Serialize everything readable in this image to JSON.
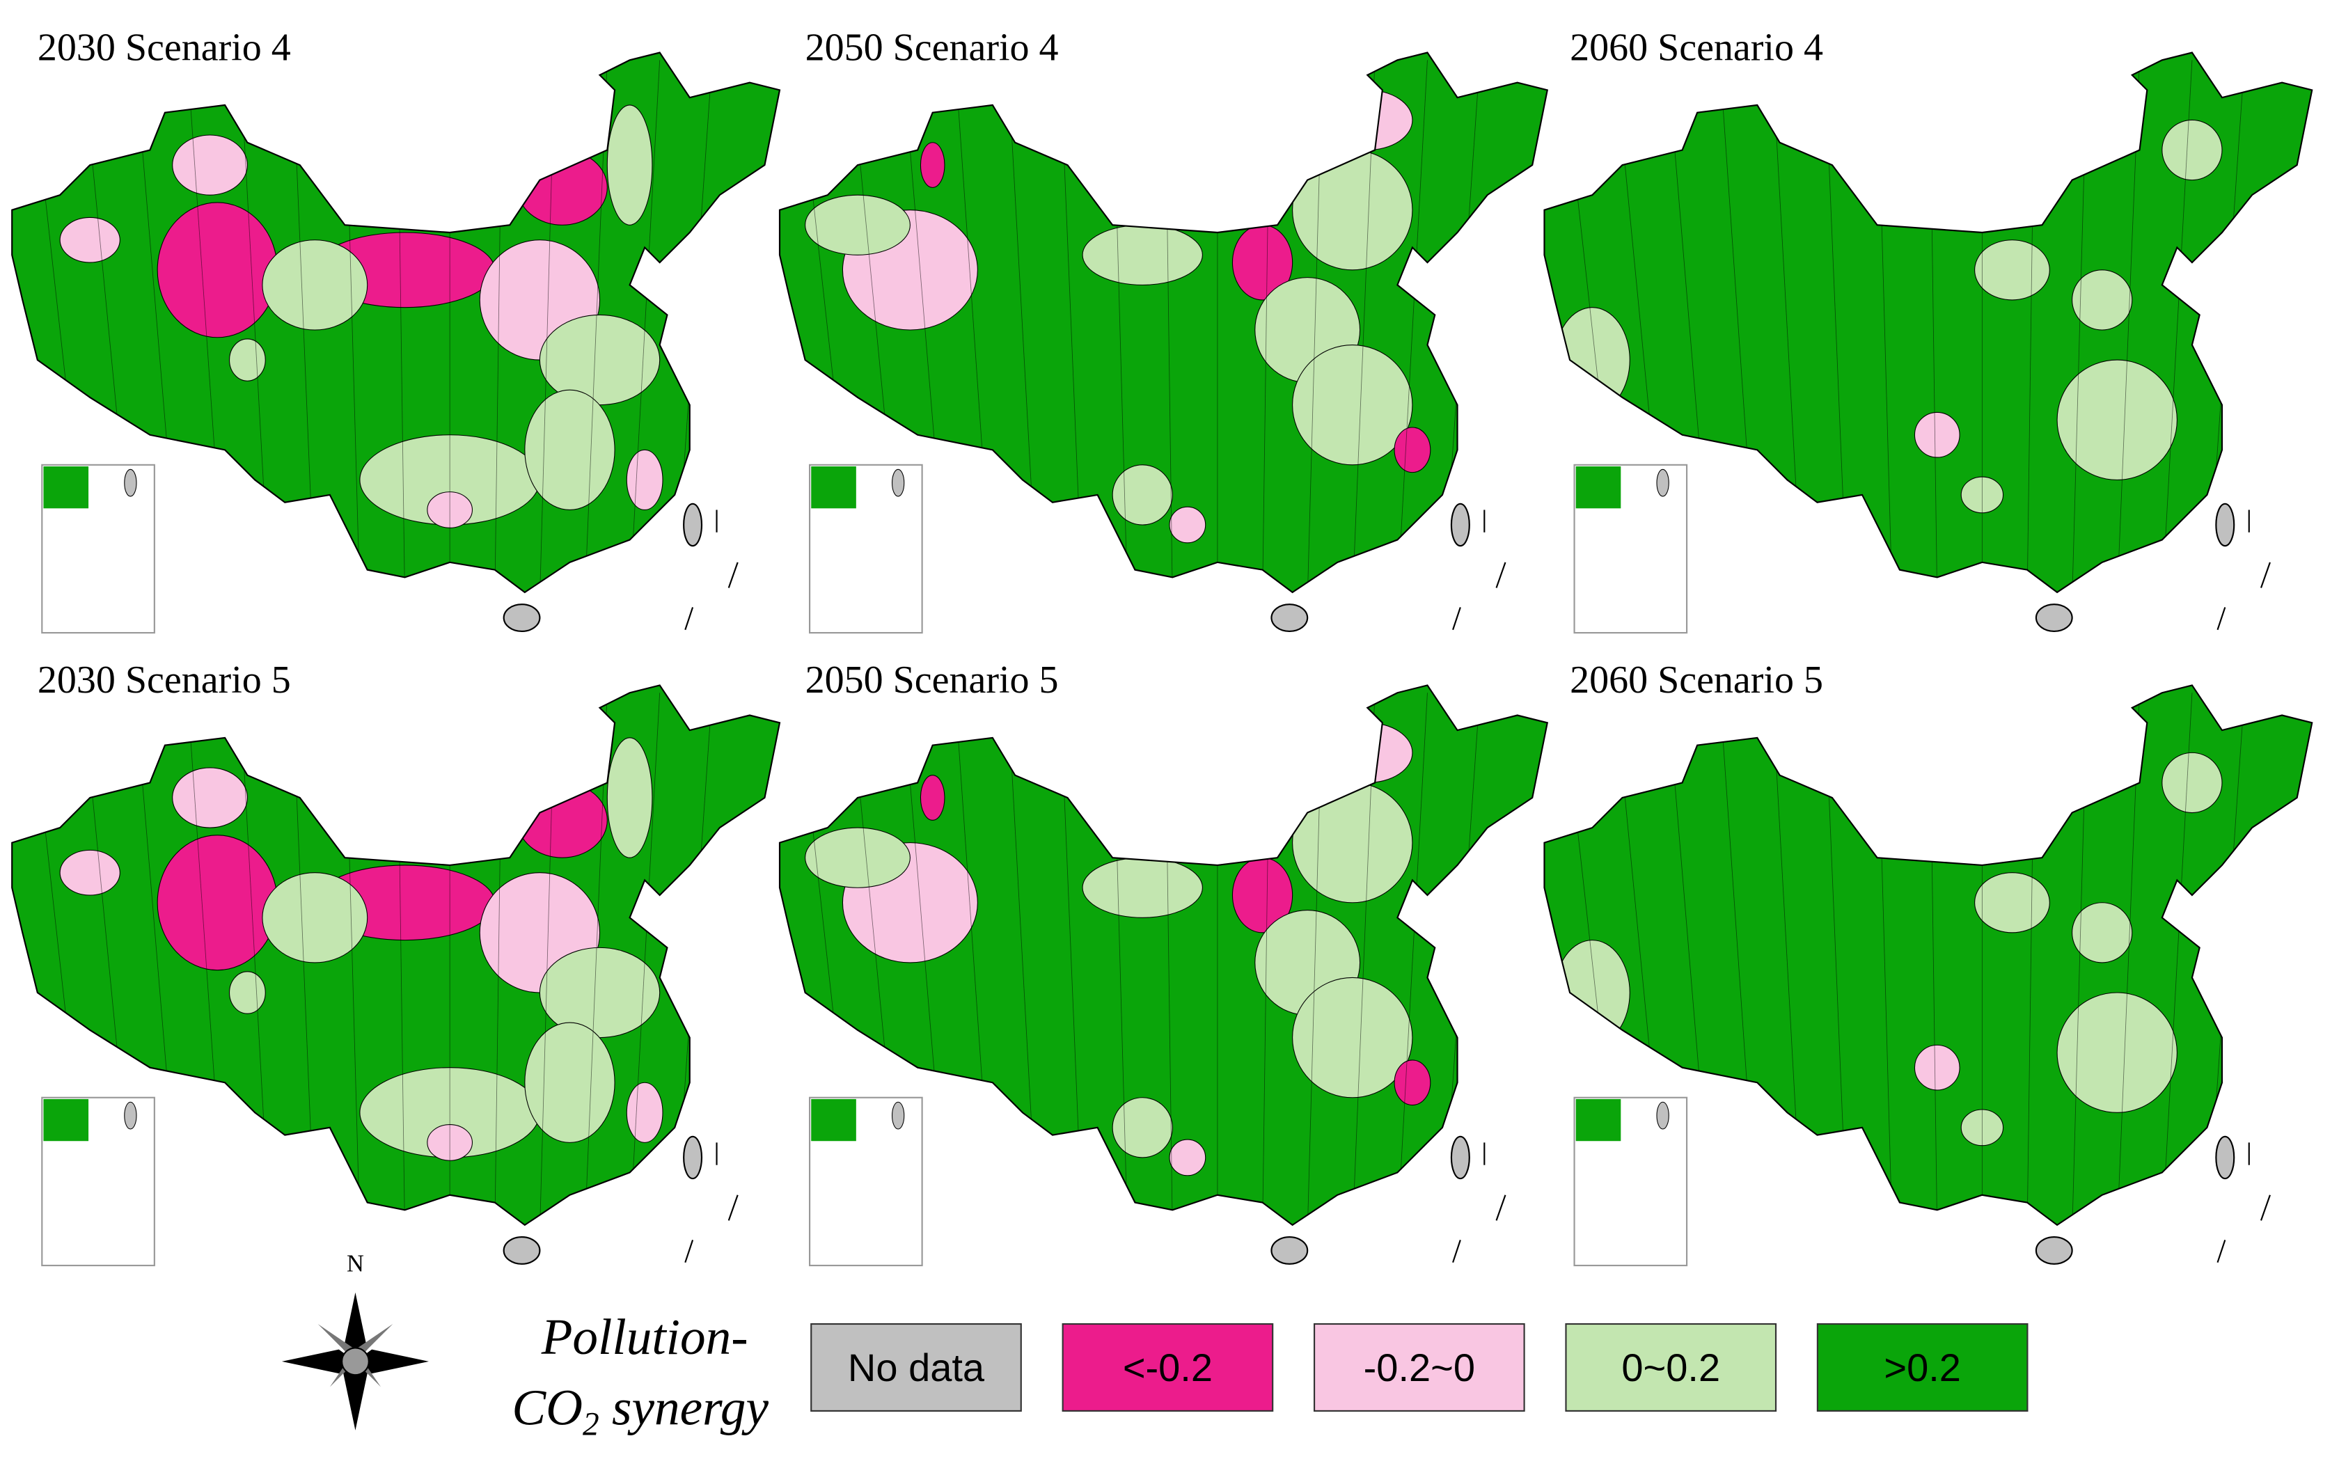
{
  "panels": [
    {
      "title": "2030 Scenario 4"
    },
    {
      "title": "2050 Scenario 4"
    },
    {
      "title": "2060 Scenario 4"
    },
    {
      "title": "2030 Scenario 5"
    },
    {
      "title": "2050 Scenario 5"
    },
    {
      "title": "2060 Scenario 5"
    }
  ],
  "compass": {
    "label": "N"
  },
  "legend": {
    "title": {
      "line1": "Pollution-",
      "line2_main": "CO",
      "line2_sub": "2",
      "line2_rest": " synergy"
    },
    "items": [
      {
        "label": "No data",
        "color": "#c0c0c0"
      },
      {
        "label": "<-0.2",
        "color": "#ec1c8c"
      },
      {
        "label": "-0.2~0",
        "color": "#f9c6e2"
      },
      {
        "label": "0~0.2",
        "color": "#c3e6b0"
      },
      {
        "label": ">0.2",
        "color": "#0aa50a"
      }
    ]
  }
}
